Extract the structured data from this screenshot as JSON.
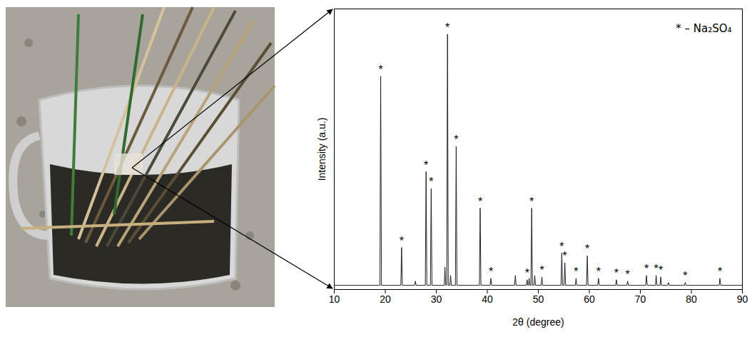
{
  "chart_data": {
    "type": "line",
    "xlabel": "2θ (degree)",
    "ylabel": "Intensity (a.u.)",
    "xlim": [
      10,
      90
    ],
    "xticks": [
      10,
      20,
      30,
      40,
      50,
      60,
      70,
      80,
      90
    ],
    "ylim": [
      0,
      100
    ],
    "yticks": [],
    "tick_labels": "x",
    "legend": "top-right",
    "color": "#222222",
    "x": [
      10,
      18.95,
      19.1,
      19.25,
      23.05,
      23.2,
      23.35,
      25.75,
      25.9,
      26.05,
      27.85,
      28.0,
      28.15,
      28.85,
      29.0,
      29.15,
      31.55,
      31.7,
      31.85,
      32.05,
      32.2,
      32.35,
      32.65,
      32.8,
      32.95,
      33.75,
      33.9,
      34.05,
      38.45,
      38.6,
      38.75,
      40.55,
      40.7,
      40.85,
      45.35,
      45.5,
      45.65,
      47.65,
      47.8,
      47.95,
      48.05,
      48.2,
      48.35,
      48.55,
      48.7,
      48.85,
      49.15,
      49.3,
      49.45,
      50.55,
      50.7,
      50.85,
      54.45,
      54.6,
      54.75,
      55.05,
      55.2,
      55.35,
      57.25,
      57.4,
      57.55,
      59.45,
      59.6,
      59.75,
      61.65,
      61.8,
      61.95,
      65.15,
      65.3,
      65.45,
      67.35,
      67.5,
      67.65,
      71.05,
      71.2,
      71.35,
      72.95,
      73.1,
      73.25,
      73.85,
      74.0,
      74.15,
      75.35,
      75.5,
      75.65,
      78.65,
      78.8,
      78.95,
      85.45,
      85.6,
      85.75,
      90
    ],
    "values": [
      1.5,
      1.5,
      76,
      1.5,
      1.5,
      15,
      1.5,
      1.5,
      3,
      1.5,
      1.5,
      42,
      1.5,
      1.5,
      36,
      1.5,
      1.5,
      8,
      1.5,
      1.5,
      91,
      1.5,
      1.5,
      5,
      1.5,
      1.5,
      51,
      1.5,
      1.5,
      29,
      1.5,
      1.5,
      4,
      1.5,
      1.5,
      5,
      1.5,
      1.5,
      3.5,
      1.5,
      1.5,
      4,
      1.5,
      1.5,
      29,
      1.5,
      1.5,
      5,
      1.5,
      1.5,
      4.5,
      1.5,
      1.5,
      13,
      1.5,
      1.5,
      9.5,
      1.5,
      1.5,
      4,
      1.5,
      1.5,
      12,
      1.5,
      1.5,
      4,
      1.5,
      1.5,
      3.5,
      1.5,
      1.5,
      3,
      1.5,
      1.5,
      5,
      1.5,
      1.5,
      5,
      1.5,
      1.5,
      4.5,
      1.5,
      1.5,
      2.5,
      1.5,
      1.5,
      2.5,
      1.5,
      1.5,
      4,
      1.5,
      1.5
    ],
    "peaks": {
      "name": "* – Na₂SO₄",
      "marker": "*",
      "x": [
        19.1,
        23.2,
        28.0,
        29.0,
        32.2,
        33.9,
        38.6,
        40.7,
        47.8,
        48.7,
        50.7,
        54.6,
        55.2,
        57.4,
        59.6,
        61.8,
        65.3,
        67.5,
        71.2,
        73.1,
        74.0,
        78.8,
        85.6
      ],
      "y": [
        76,
        15,
        42,
        36,
        91,
        51,
        29,
        4,
        3.5,
        29,
        4.5,
        13,
        9.5,
        4,
        12,
        4,
        3.5,
        3,
        5,
        5,
        4.5,
        2.5,
        4
      ]
    }
  }
}
